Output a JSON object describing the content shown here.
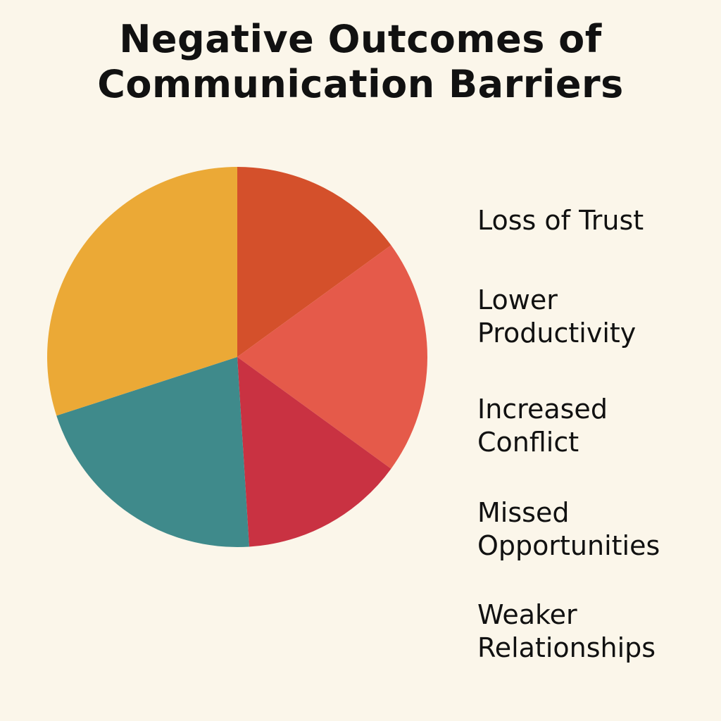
{
  "chart_data": {
    "type": "pie",
    "title": "Negative Outcomes of Communication Barriers",
    "title_lines": [
      "Negative Outcomes of",
      "Communication Barriers"
    ],
    "legend_position": "right",
    "categories": [
      "Loss of Trust",
      "Lower Productivity",
      "Increased Conflict",
      "Missed Opportunities",
      "Weaker Relationships"
    ],
    "legend_lines": [
      [
        "Loss of Trust"
      ],
      [
        "Lower",
        "Productivity"
      ],
      [
        "Increased",
        "Conflict"
      ],
      [
        "Missed",
        "Opportunities"
      ],
      [
        "Weaker",
        "Relationships"
      ]
    ],
    "slices": [
      {
        "value": 15,
        "color": "#D4502B"
      },
      {
        "value": 20,
        "color": "#E55A4A"
      },
      {
        "value": 14,
        "color": "#C93242"
      },
      {
        "value": 21,
        "color": "#3F8A8B"
      },
      {
        "value": 30,
        "color": "#EBA936"
      }
    ]
  }
}
